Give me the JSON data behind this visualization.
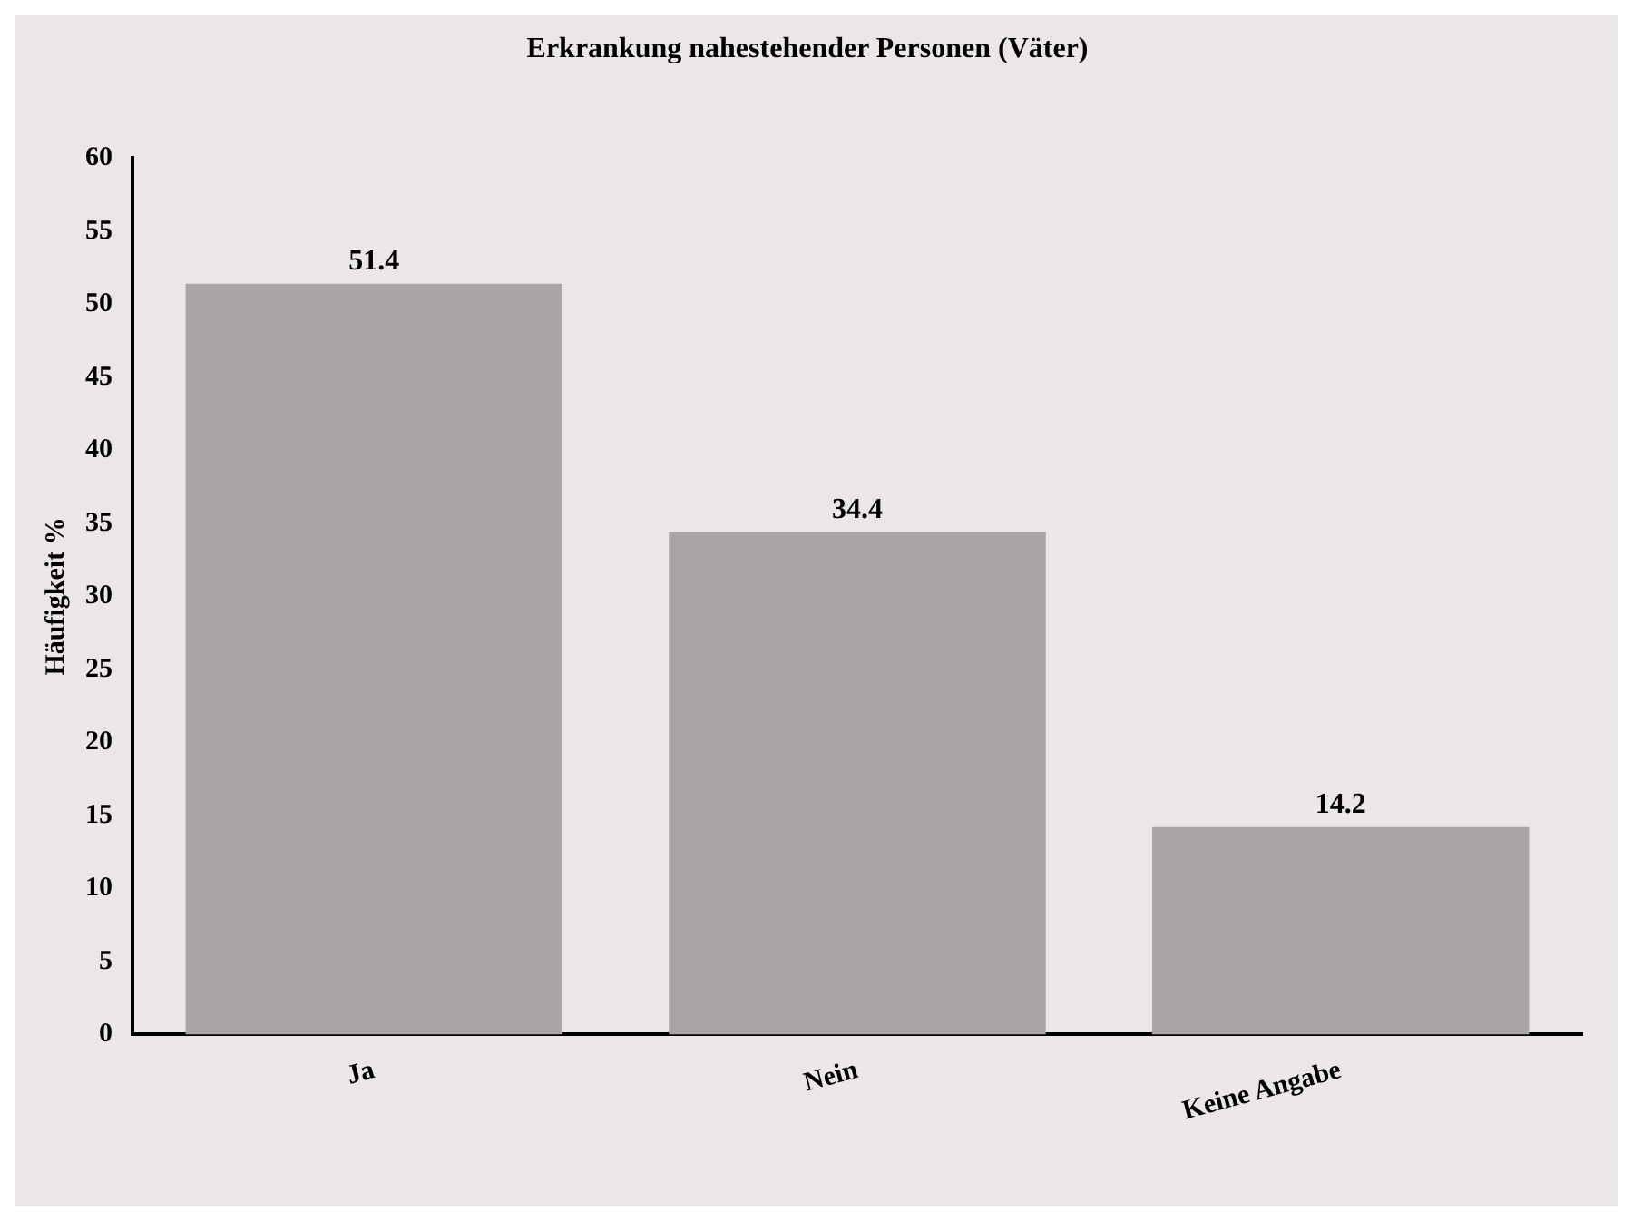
{
  "chart_data": {
    "type": "bar",
    "title": "Erkrankung nahestehender Personen (Väter)",
    "ylabel": "Häufigkeit %",
    "categories": [
      "Ja",
      "Nein",
      "Keine Angabe"
    ],
    "values": [
      51.4,
      34.4,
      14.2
    ],
    "color": "#a8a5a4",
    "ylim": [
      0,
      60
    ],
    "yticks": [
      0,
      5,
      10,
      15,
      20,
      25,
      30,
      35,
      40,
      45,
      50,
      55,
      60
    ],
    "grid": false,
    "data_labels": true
  }
}
